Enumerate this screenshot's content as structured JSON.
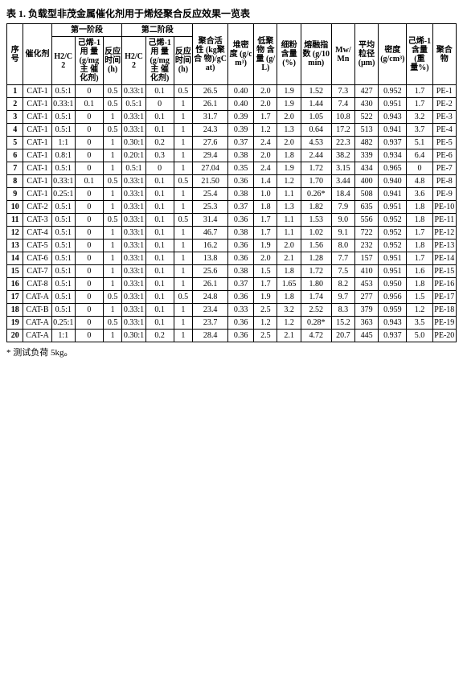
{
  "title": "表 1. 负载型非茂金属催化剂用于烯烃聚合反应效果一览表",
  "footnote": "* 测试负荷 5kg。",
  "header": {
    "seq": "序号",
    "cat": "催化剂",
    "stage1": "第一阶段",
    "stage2": "第二阶段",
    "h2c2": "H2/C2",
    "hex_dose": "己烯-1 用\n量\n(g/mg 主\n催化剂)",
    "react_time": "反应\n时间\n(h)",
    "activity": "聚合活\n性\n(kg聚合\n物)/gCat)",
    "bulk": "堆密度\n(g/cm³)",
    "oligomer": "低聚物\n含量\n(g/L)",
    "fines": "细粉\n含量\n(%)",
    "mi": "熔融指数\n(g/10min)",
    "mwmn": "Mw/Mn",
    "diameter": "平均粒径\n(μm)",
    "density": "密度\n(g/cm³)",
    "hex_content": "己烯-1\n含量\n(重量%)",
    "polymer": "聚合物"
  },
  "rows": [
    {
      "seq": "1",
      "cat": "CAT-1",
      "h2a": "0.5:1",
      "hexa": "0",
      "ta": "0.5",
      "h2b": "0.33:1",
      "hexb": "0.1",
      "tb": "0.5",
      "act": "26.5",
      "bulk": "0.40",
      "olig": "2.0",
      "fine": "1.9",
      "mi": "1.52",
      "mwmn": "7.3",
      "dia": "427",
      "den": "0.952",
      "hexc": "1.7",
      "pe": "PE-1"
    },
    {
      "seq": "2",
      "cat": "CAT-1",
      "h2a": "0.33:1",
      "hexa": "0.1",
      "ta": "0.5",
      "h2b": "0.5:1",
      "hexb": "0",
      "tb": "1",
      "act": "26.1",
      "bulk": "0.40",
      "olig": "2.0",
      "fine": "1.9",
      "mi": "1.44",
      "mwmn": "7.4",
      "dia": "430",
      "den": "0.951",
      "hexc": "1.7",
      "pe": "PE-2"
    },
    {
      "seq": "3",
      "cat": "CAT-1",
      "h2a": "0.5:1",
      "hexa": "0",
      "ta": "1",
      "h2b": "0.33:1",
      "hexb": "0.1",
      "tb": "1",
      "act": "31.7",
      "bulk": "0.39",
      "olig": "1.7",
      "fine": "2.0",
      "mi": "1.05",
      "mwmn": "10.8",
      "dia": "522",
      "den": "0.943",
      "hexc": "3.2",
      "pe": "PE-3"
    },
    {
      "seq": "4",
      "cat": "CAT-1",
      "h2a": "0.5:1",
      "hexa": "0",
      "ta": "0.5",
      "h2b": "0.33:1",
      "hexb": "0.1",
      "tb": "1",
      "act": "24.3",
      "bulk": "0.39",
      "olig": "1.2",
      "fine": "1.3",
      "mi": "0.64",
      "mwmn": "17.2",
      "dia": "513",
      "den": "0.941",
      "hexc": "3.7",
      "pe": "PE-4"
    },
    {
      "seq": "5",
      "cat": "CAT-1",
      "h2a": "1:1",
      "hexa": "0",
      "ta": "1",
      "h2b": "0.30:1",
      "hexb": "0.2",
      "tb": "1",
      "act": "27.6",
      "bulk": "0.37",
      "olig": "2.4",
      "fine": "2.0",
      "mi": "4.53",
      "mwmn": "22.3",
      "dia": "482",
      "den": "0.937",
      "hexc": "5.1",
      "pe": "PE-5"
    },
    {
      "seq": "6",
      "cat": "CAT-1",
      "h2a": "0.8:1",
      "hexa": "0",
      "ta": "1",
      "h2b": "0.20:1",
      "hexb": "0.3",
      "tb": "1",
      "act": "29.4",
      "bulk": "0.38",
      "olig": "2.0",
      "fine": "1.8",
      "mi": "2.44",
      "mwmn": "38.2",
      "dia": "339",
      "den": "0.934",
      "hexc": "6.4",
      "pe": "PE-6"
    },
    {
      "seq": "7",
      "cat": "CAT-1",
      "h2a": "0.5:1",
      "hexa": "0",
      "ta": "1",
      "h2b": "0.5:1",
      "hexb": "0",
      "tb": "1",
      "act": "27.04",
      "bulk": "0.35",
      "olig": "2.4",
      "fine": "1.9",
      "mi": "1.72",
      "mwmn": "3.15",
      "dia": "434",
      "den": "0.965",
      "hexc": "0",
      "pe": "PE-7"
    },
    {
      "seq": "8",
      "cat": "CAT-1",
      "h2a": "0.33:1",
      "hexa": "0.1",
      "ta": "0.5",
      "h2b": "0.33:1",
      "hexb": "0.1",
      "tb": "0.5",
      "act": "21.50",
      "bulk": "0.36",
      "olig": "1.4",
      "fine": "1.2",
      "mi": "1.70",
      "mwmn": "3.44",
      "dia": "400",
      "den": "0.940",
      "hexc": "4.8",
      "pe": "PE-8"
    },
    {
      "seq": "9",
      "cat": "CAT-1",
      "h2a": "0.25:1",
      "hexa": "0",
      "ta": "1",
      "h2b": "0.33:1",
      "hexb": "0.1",
      "tb": "1",
      "act": "25.4",
      "bulk": "0.38",
      "olig": "1.0",
      "fine": "1.1",
      "mi": "0.26*",
      "mwmn": "18.4",
      "dia": "508",
      "den": "0.941",
      "hexc": "3.6",
      "pe": "PE-9"
    },
    {
      "seq": "10",
      "cat": "CAT-2",
      "h2a": "0.5:1",
      "hexa": "0",
      "ta": "1",
      "h2b": "0.33:1",
      "hexb": "0.1",
      "tb": "1",
      "act": "25.3",
      "bulk": "0.37",
      "olig": "1.8",
      "fine": "1.3",
      "mi": "1.82",
      "mwmn": "7.9",
      "dia": "635",
      "den": "0.951",
      "hexc": "1.8",
      "pe": "PE-10"
    },
    {
      "seq": "11",
      "cat": "CAT-3",
      "h2a": "0.5:1",
      "hexa": "0",
      "ta": "0.5",
      "h2b": "0.33:1",
      "hexb": "0.1",
      "tb": "0.5",
      "act": "31.4",
      "bulk": "0.36",
      "olig": "1.7",
      "fine": "1.1",
      "mi": "1.53",
      "mwmn": "9.0",
      "dia": "556",
      "den": "0.952",
      "hexc": "1.8",
      "pe": "PE-11"
    },
    {
      "seq": "12",
      "cat": "CAT-4",
      "h2a": "0.5:1",
      "hexa": "0",
      "ta": "1",
      "h2b": "0.33:1",
      "hexb": "0.1",
      "tb": "1",
      "act": "46.7",
      "bulk": "0.38",
      "olig": "1.7",
      "fine": "1.1",
      "mi": "1.02",
      "mwmn": "9.1",
      "dia": "722",
      "den": "0.952",
      "hexc": "1.7",
      "pe": "PE-12"
    },
    {
      "seq": "13",
      "cat": "CAT-5",
      "h2a": "0.5:1",
      "hexa": "0",
      "ta": "1",
      "h2b": "0.33:1",
      "hexb": "0.1",
      "tb": "1",
      "act": "16.2",
      "bulk": "0.36",
      "olig": "1.9",
      "fine": "2.0",
      "mi": "1.56",
      "mwmn": "8.0",
      "dia": "232",
      "den": "0.952",
      "hexc": "1.8",
      "pe": "PE-13"
    },
    {
      "seq": "14",
      "cat": "CAT-6",
      "h2a": "0.5:1",
      "hexa": "0",
      "ta": "1",
      "h2b": "0.33:1",
      "hexb": "0.1",
      "tb": "1",
      "act": "13.8",
      "bulk": "0.36",
      "olig": "2.0",
      "fine": "2.1",
      "mi": "1.28",
      "mwmn": "7.7",
      "dia": "157",
      "den": "0.951",
      "hexc": "1.7",
      "pe": "PE-14"
    },
    {
      "seq": "15",
      "cat": "CAT-7",
      "h2a": "0.5:1",
      "hexa": "0",
      "ta": "1",
      "h2b": "0.33:1",
      "hexb": "0.1",
      "tb": "1",
      "act": "25.6",
      "bulk": "0.38",
      "olig": "1.5",
      "fine": "1.8",
      "mi": "1.72",
      "mwmn": "7.5",
      "dia": "410",
      "den": "0.951",
      "hexc": "1.6",
      "pe": "PE-15"
    },
    {
      "seq": "16",
      "cat": "CAT-8",
      "h2a": "0.5:1",
      "hexa": "0",
      "ta": "1",
      "h2b": "0.33:1",
      "hexb": "0.1",
      "tb": "1",
      "act": "26.1",
      "bulk": "0.37",
      "olig": "1.7",
      "fine": "1.65",
      "mi": "1.80",
      "mwmn": "8.2",
      "dia": "453",
      "den": "0.950",
      "hexc": "1.8",
      "pe": "PE-16"
    },
    {
      "seq": "17",
      "cat": "CAT-A",
      "h2a": "0.5:1",
      "hexa": "0",
      "ta": "0.5",
      "h2b": "0.33:1",
      "hexb": "0.1",
      "tb": "0.5",
      "act": "24.8",
      "bulk": "0.36",
      "olig": "1.9",
      "fine": "1.8",
      "mi": "1.74",
      "mwmn": "9.7",
      "dia": "277",
      "den": "0.956",
      "hexc": "1.5",
      "pe": "PE-17"
    },
    {
      "seq": "18",
      "cat": "CAT-B",
      "h2a": "0.5:1",
      "hexa": "0",
      "ta": "1",
      "h2b": "0.33:1",
      "hexb": "0.1",
      "tb": "1",
      "act": "23.4",
      "bulk": "0.33",
      "olig": "2.5",
      "fine": "3.2",
      "mi": "2.52",
      "mwmn": "8.3",
      "dia": "379",
      "den": "0.959",
      "hexc": "1.2",
      "pe": "PE-18"
    },
    {
      "seq": "19",
      "cat": "CAT-A",
      "h2a": "0.25:1",
      "hexa": "0",
      "ta": "0.5",
      "h2b": "0.33:1",
      "hexb": "0.1",
      "tb": "1",
      "act": "23.7",
      "bulk": "0.36",
      "olig": "1.2",
      "fine": "1.2",
      "mi": "0.28*",
      "mwmn": "15.2",
      "dia": "363",
      "den": "0.943",
      "hexc": "3.5",
      "pe": "PE-19"
    },
    {
      "seq": "20",
      "cat": "CAT-A",
      "h2a": "1:1",
      "hexa": "0",
      "ta": "1",
      "h2b": "0.30:1",
      "hexb": "0.2",
      "tb": "1",
      "act": "28.4",
      "bulk": "0.36",
      "olig": "2.5",
      "fine": "2.1",
      "mi": "4.72",
      "mwmn": "20.7",
      "dia": "445",
      "den": "0.937",
      "hexc": "5.0",
      "pe": "PE-20"
    }
  ],
  "style": {
    "font_family": "SimSun, Times New Roman, serif",
    "font_size_pt": 10,
    "title_fontsize_pt": 12,
    "border_color": "#000000",
    "background": "#ffffff",
    "text_color": "#000000"
  }
}
